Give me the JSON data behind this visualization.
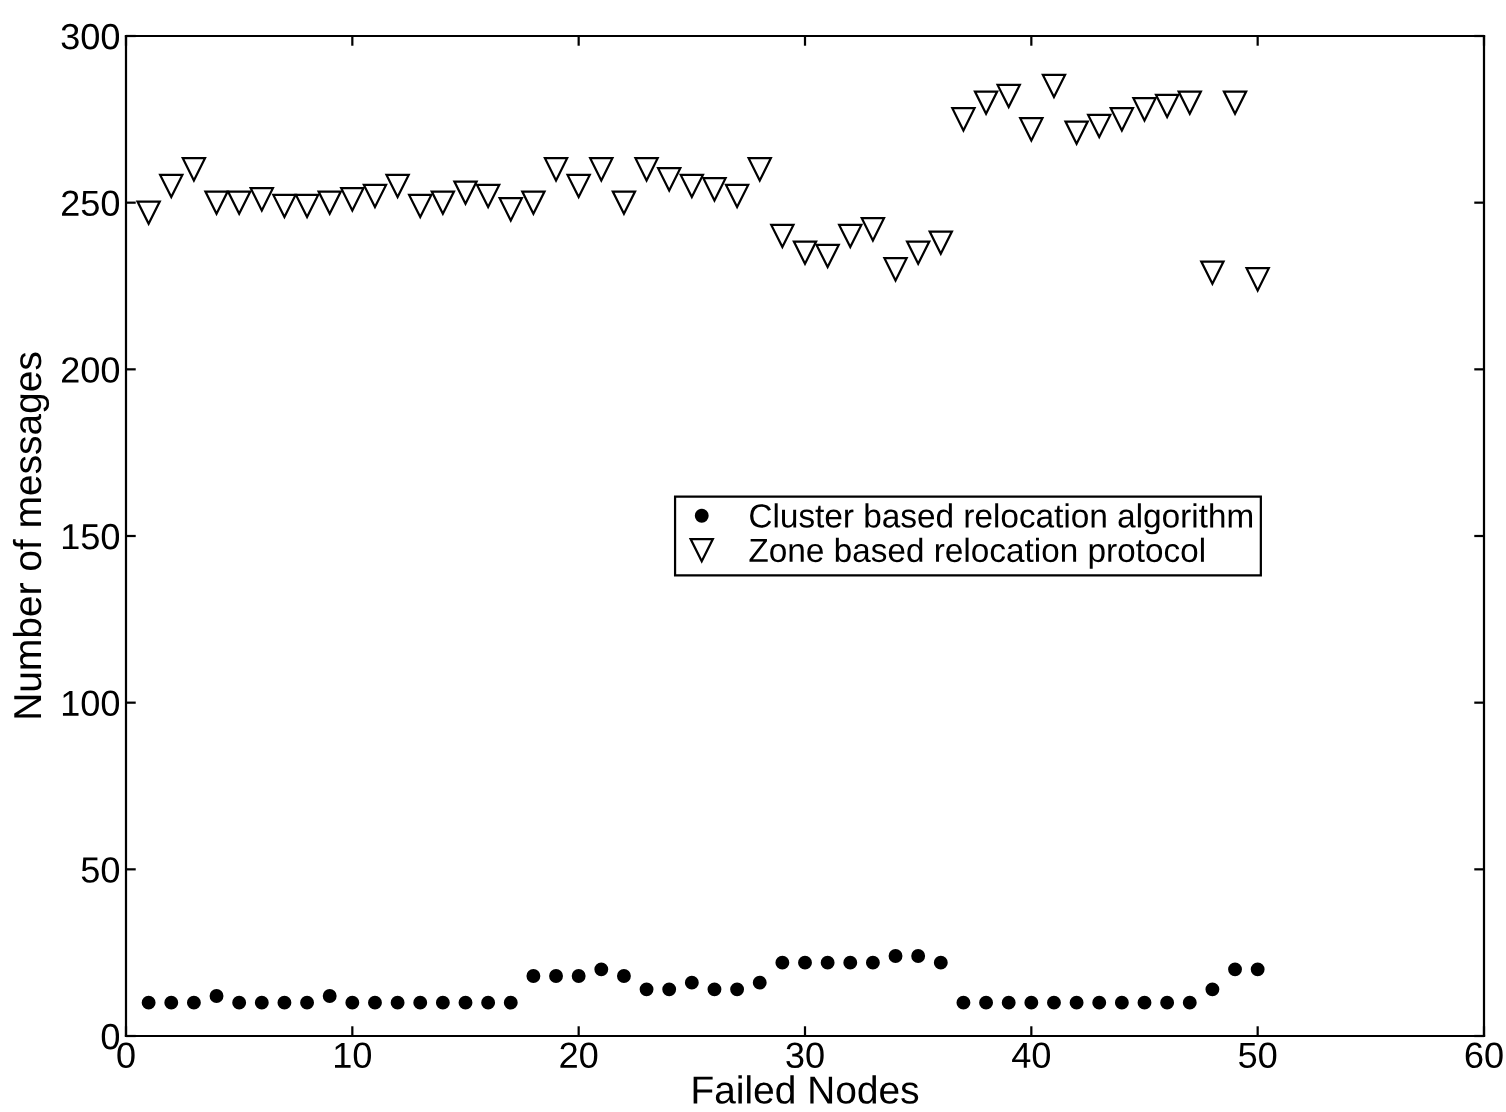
{
  "chart_data": {
    "type": "scatter",
    "xlabel": "Failed Nodes",
    "ylabel": "Number of messages",
    "x": [
      1,
      2,
      3,
      4,
      5,
      6,
      7,
      8,
      9,
      10,
      11,
      12,
      13,
      14,
      15,
      16,
      17,
      18,
      19,
      20,
      21,
      22,
      23,
      24,
      25,
      26,
      27,
      28,
      29,
      30,
      31,
      32,
      33,
      34,
      35,
      36,
      37,
      38,
      39,
      40,
      41,
      42,
      43,
      44,
      45,
      46,
      47,
      48,
      49,
      50
    ],
    "series": [
      {
        "name": "Cluster based relocation algorithm",
        "color": "#000000",
        "marker": "circle",
        "values": [
          10,
          10,
          10,
          12,
          10,
          10,
          10,
          10,
          12,
          10,
          10,
          10,
          10,
          10,
          10,
          10,
          10,
          18,
          18,
          18,
          20,
          18,
          14,
          14,
          16,
          14,
          14,
          16,
          22,
          22,
          22,
          22,
          22,
          24,
          24,
          22,
          10,
          10,
          10,
          10,
          10,
          10,
          10,
          10,
          10,
          10,
          10,
          14,
          20,
          20
        ]
      },
      {
        "name": "Zone based relocation protocol",
        "color": "#000000",
        "marker": "triangle",
        "values": [
          247,
          255,
          260,
          250,
          250,
          251,
          249,
          249,
          250,
          251,
          252,
          255,
          249,
          250,
          253,
          252,
          248,
          250,
          260,
          255,
          260,
          250,
          260,
          257,
          255,
          254,
          252,
          260,
          240,
          235,
          234,
          240,
          242,
          230,
          235,
          238,
          275,
          280,
          282,
          272,
          285,
          271,
          273,
          275,
          278,
          279,
          280,
          229,
          280,
          227
        ]
      }
    ],
    "xlim": [
      0,
      60
    ],
    "xticks": [
      0,
      10,
      20,
      30,
      40,
      50,
      60
    ],
    "ylim": [
      0,
      300
    ],
    "yticks": [
      0,
      50,
      100,
      150,
      200,
      250,
      300
    ],
    "grid": false,
    "legend": "center"
  }
}
